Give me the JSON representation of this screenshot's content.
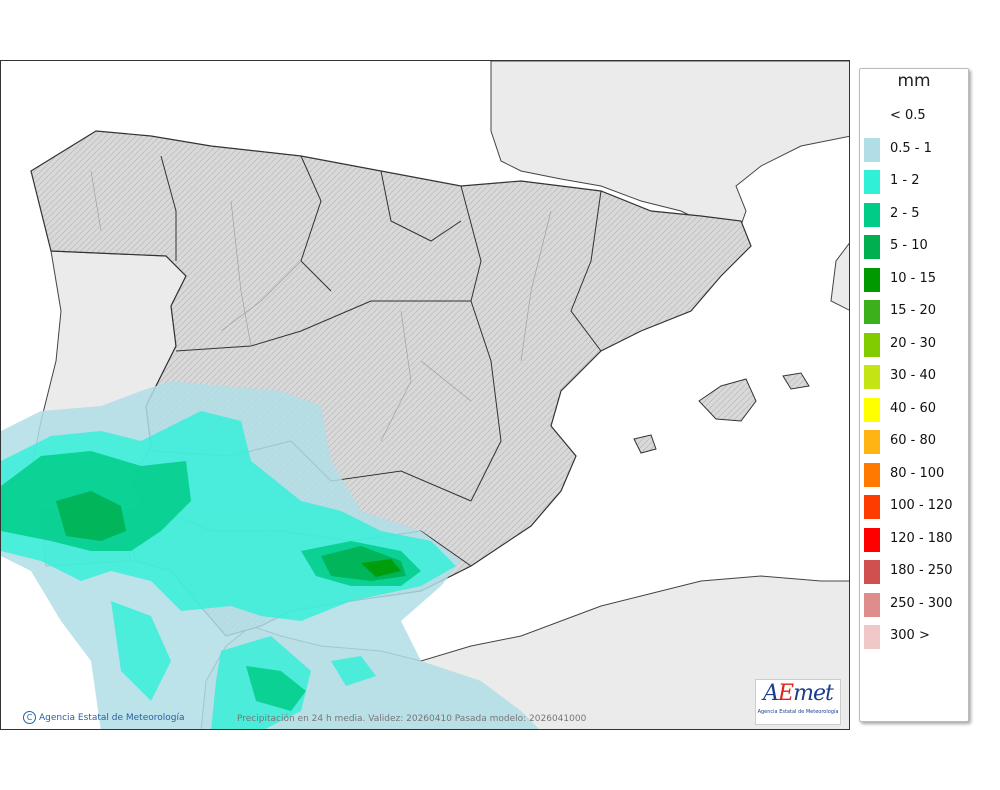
{
  "legend": {
    "unit": "mm",
    "items": [
      {
        "label": "< 0.5",
        "color": ""
      },
      {
        "label": "0.5 - 1",
        "color": "#b0dde6"
      },
      {
        "label": "1 - 2",
        "color": "#30f0d8"
      },
      {
        "label": "2 - 5",
        "color": "#00cc88"
      },
      {
        "label": "5 - 10",
        "color": "#00b050"
      },
      {
        "label": "10 - 15",
        "color": "#009a00"
      },
      {
        "label": "15 - 20",
        "color": "#3cb01a"
      },
      {
        "label": "20 - 30",
        "color": "#80cc00"
      },
      {
        "label": "30 - 40",
        "color": "#c4e414"
      },
      {
        "label": "40 - 60",
        "color": "#ffff00"
      },
      {
        "label": "60 - 80",
        "color": "#ffb414"
      },
      {
        "label": "80 - 100",
        "color": "#ff7800"
      },
      {
        "label": "100 - 120",
        "color": "#ff3c00"
      },
      {
        "label": "120 - 180",
        "color": "#ff0000"
      },
      {
        "label": "180 - 250",
        "color": "#d05050"
      },
      {
        "label": "250 - 300",
        "color": "#de8c8c"
      },
      {
        "label": "300 >",
        "color": "#f0c8c8"
      }
    ]
  },
  "map": {
    "credit": "Agencia Estatal de Meteorología",
    "credit_symbol": "C",
    "validity": "Precipitación en 24 h media. Validez: 20260410 Pasada modelo: 2026041000",
    "logo_text": "AEmet",
    "logo_subtitle": "Agencia Estatal de Meteorología"
  }
}
